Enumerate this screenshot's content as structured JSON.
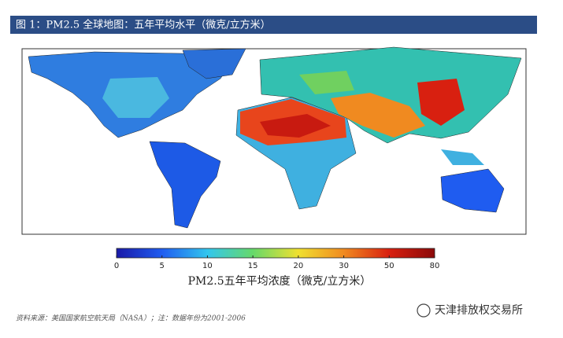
{
  "header": {
    "title": "图 1：PM2.5 全球地图：五年平均水平（微克/立方米）"
  },
  "colorbar": {
    "ticks": [
      0,
      5,
      10,
      15,
      20,
      30,
      50,
      80
    ],
    "colors": [
      "#1a1aa8",
      "#1f5cf0",
      "#33c6ee",
      "#66d96a",
      "#f0e030",
      "#f08a20",
      "#d82010",
      "#8b0a0a"
    ],
    "label": "PM2.5五年平均浓度（微克/立方米）"
  },
  "source": "资料来源：美国国家航空航天局（NASA）；注：数据年份为2001-2006",
  "watermark": "天津排放权交易所"
}
